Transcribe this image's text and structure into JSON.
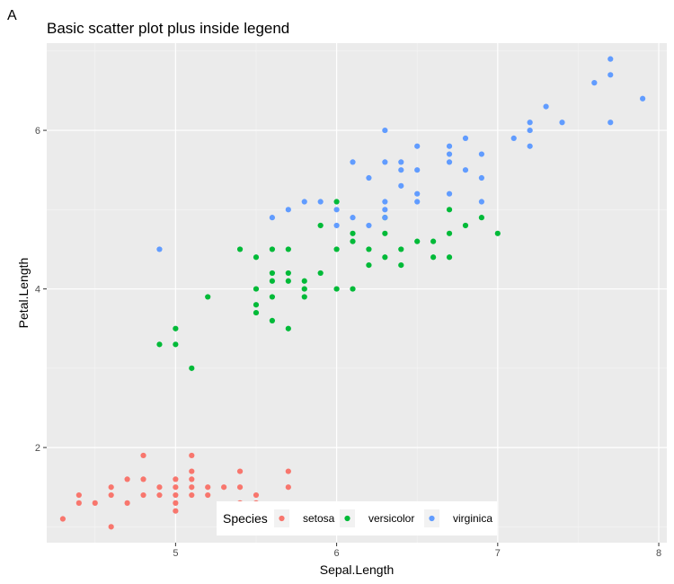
{
  "panel_tag": "A",
  "chart_data": {
    "type": "scatter",
    "title": "Basic scatter plot plus inside legend",
    "xlabel": "Sepal.Length",
    "ylabel": "Petal.Length",
    "xlim": [
      4.2,
      8.05
    ],
    "ylim": [
      0.8,
      7.1
    ],
    "xticks": [
      5,
      6,
      7,
      8
    ],
    "yticks": [
      2,
      4,
      6
    ],
    "grid": true,
    "legend": {
      "title": "Species",
      "placement": "bottom-inside"
    },
    "series": [
      {
        "name": "setosa",
        "color": "#F8766D",
        "points": [
          [
            4.3,
            1.1
          ],
          [
            4.4,
            1.3
          ],
          [
            4.4,
            1.4
          ],
          [
            4.5,
            1.3
          ],
          [
            4.6,
            1.0
          ],
          [
            4.6,
            1.4
          ],
          [
            4.6,
            1.5
          ],
          [
            4.7,
            1.3
          ],
          [
            4.7,
            1.6
          ],
          [
            4.8,
            1.4
          ],
          [
            4.8,
            1.6
          ],
          [
            4.8,
            1.9
          ],
          [
            4.9,
            1.4
          ],
          [
            4.9,
            1.5
          ],
          [
            5.0,
            1.2
          ],
          [
            5.0,
            1.3
          ],
          [
            5.0,
            1.4
          ],
          [
            5.0,
            1.5
          ],
          [
            5.0,
            1.6
          ],
          [
            5.1,
            1.4
          ],
          [
            5.1,
            1.5
          ],
          [
            5.1,
            1.6
          ],
          [
            5.1,
            1.7
          ],
          [
            5.1,
            1.9
          ],
          [
            5.2,
            1.4
          ],
          [
            5.2,
            1.5
          ],
          [
            5.3,
            1.5
          ],
          [
            5.4,
            1.3
          ],
          [
            5.4,
            1.5
          ],
          [
            5.4,
            1.7
          ],
          [
            5.5,
            1.3
          ],
          [
            5.5,
            1.4
          ],
          [
            5.7,
            1.5
          ],
          [
            5.7,
            1.7
          ]
        ]
      },
      {
        "name": "versicolor",
        "color": "#00BA38",
        "points": [
          [
            4.9,
            3.3
          ],
          [
            5.0,
            3.3
          ],
          [
            5.0,
            3.5
          ],
          [
            5.1,
            3.0
          ],
          [
            5.2,
            3.9
          ],
          [
            5.4,
            4.5
          ],
          [
            5.5,
            3.7
          ],
          [
            5.5,
            3.8
          ],
          [
            5.5,
            4.0
          ],
          [
            5.5,
            4.4
          ],
          [
            5.6,
            3.6
          ],
          [
            5.6,
            3.9
          ],
          [
            5.6,
            4.1
          ],
          [
            5.6,
            4.2
          ],
          [
            5.6,
            4.5
          ],
          [
            5.7,
            3.5
          ],
          [
            5.7,
            4.1
          ],
          [
            5.7,
            4.2
          ],
          [
            5.7,
            4.5
          ],
          [
            5.8,
            3.9
          ],
          [
            5.8,
            4.0
          ],
          [
            5.8,
            4.1
          ],
          [
            5.9,
            4.2
          ],
          [
            5.9,
            4.8
          ],
          [
            6.0,
            4.0
          ],
          [
            6.0,
            4.5
          ],
          [
            6.0,
            5.1
          ],
          [
            6.1,
            4.0
          ],
          [
            6.1,
            4.6
          ],
          [
            6.1,
            4.7
          ],
          [
            6.2,
            4.3
          ],
          [
            6.2,
            4.5
          ],
          [
            6.3,
            4.4
          ],
          [
            6.3,
            4.7
          ],
          [
            6.3,
            4.9
          ],
          [
            6.4,
            4.3
          ],
          [
            6.4,
            4.5
          ],
          [
            6.5,
            4.6
          ],
          [
            6.6,
            4.4
          ],
          [
            6.6,
            4.6
          ],
          [
            6.7,
            4.4
          ],
          [
            6.7,
            4.7
          ],
          [
            6.7,
            5.0
          ],
          [
            6.8,
            4.8
          ],
          [
            6.9,
            4.9
          ],
          [
            7.0,
            4.7
          ]
        ]
      },
      {
        "name": "virginica",
        "color": "#619CFF",
        "points": [
          [
            4.9,
            4.5
          ],
          [
            5.6,
            4.9
          ],
          [
            5.7,
            5.0
          ],
          [
            5.8,
            5.1
          ],
          [
            5.9,
            5.1
          ],
          [
            6.0,
            4.8
          ],
          [
            6.0,
            5.0
          ],
          [
            6.1,
            4.9
          ],
          [
            6.1,
            5.6
          ],
          [
            6.2,
            4.8
          ],
          [
            6.2,
            5.4
          ],
          [
            6.3,
            4.9
          ],
          [
            6.3,
            5.0
          ],
          [
            6.3,
            5.1
          ],
          [
            6.3,
            5.6
          ],
          [
            6.3,
            6.0
          ],
          [
            6.4,
            5.3
          ],
          [
            6.4,
            5.5
          ],
          [
            6.4,
            5.6
          ],
          [
            6.5,
            5.1
          ],
          [
            6.5,
            5.2
          ],
          [
            6.5,
            5.5
          ],
          [
            6.5,
            5.8
          ],
          [
            6.7,
            5.2
          ],
          [
            6.7,
            5.6
          ],
          [
            6.7,
            5.7
          ],
          [
            6.7,
            5.8
          ],
          [
            6.8,
            5.5
          ],
          [
            6.8,
            5.9
          ],
          [
            6.9,
            5.1
          ],
          [
            6.9,
            5.4
          ],
          [
            6.9,
            5.7
          ],
          [
            7.1,
            5.9
          ],
          [
            7.2,
            5.8
          ],
          [
            7.2,
            6.0
          ],
          [
            7.2,
            6.1
          ],
          [
            7.3,
            6.3
          ],
          [
            7.4,
            6.1
          ],
          [
            7.6,
            6.6
          ],
          [
            7.7,
            6.1
          ],
          [
            7.7,
            6.7
          ],
          [
            7.7,
            6.9
          ],
          [
            7.9,
            6.4
          ]
        ]
      }
    ]
  }
}
